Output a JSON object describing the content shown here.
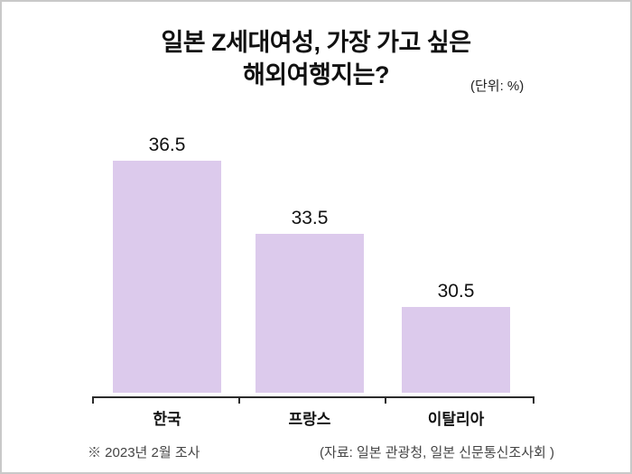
{
  "page": {
    "title_line1": "일본 Z세대여성, 가장 가고 싶은",
    "title_line2": "해외여행지는?",
    "unit_label": "(단위: %)",
    "footnote_left": "※ 2023년 2월 조사",
    "footnote_right": "(자료: 일본 관광청, 일본 신문통신조사회 )"
  },
  "colors": {
    "bar_fill": "#dccaec",
    "axis": "#2b2b2b",
    "title_text": "#111111",
    "footnote_text": "#444444",
    "background": "#ffffff",
    "border": "#c9c9c9"
  },
  "chart_data": {
    "type": "bar",
    "title": "일본 Z세대여성, 가장 가고 싶은 해외여행지는?",
    "unit": "%",
    "categories": [
      "한국",
      "프랑스",
      "이탈리아"
    ],
    "values": [
      36.5,
      33.5,
      30.5
    ],
    "value_labels": [
      "36.5",
      "33.5",
      "30.5"
    ],
    "ylim": [
      27,
      38
    ],
    "grid": false,
    "legend": "none",
    "source_note": "(자료: 일본 관광청, 일본 신문통신조사회 )",
    "survey_note": "※ 2023년 2월 조사"
  }
}
